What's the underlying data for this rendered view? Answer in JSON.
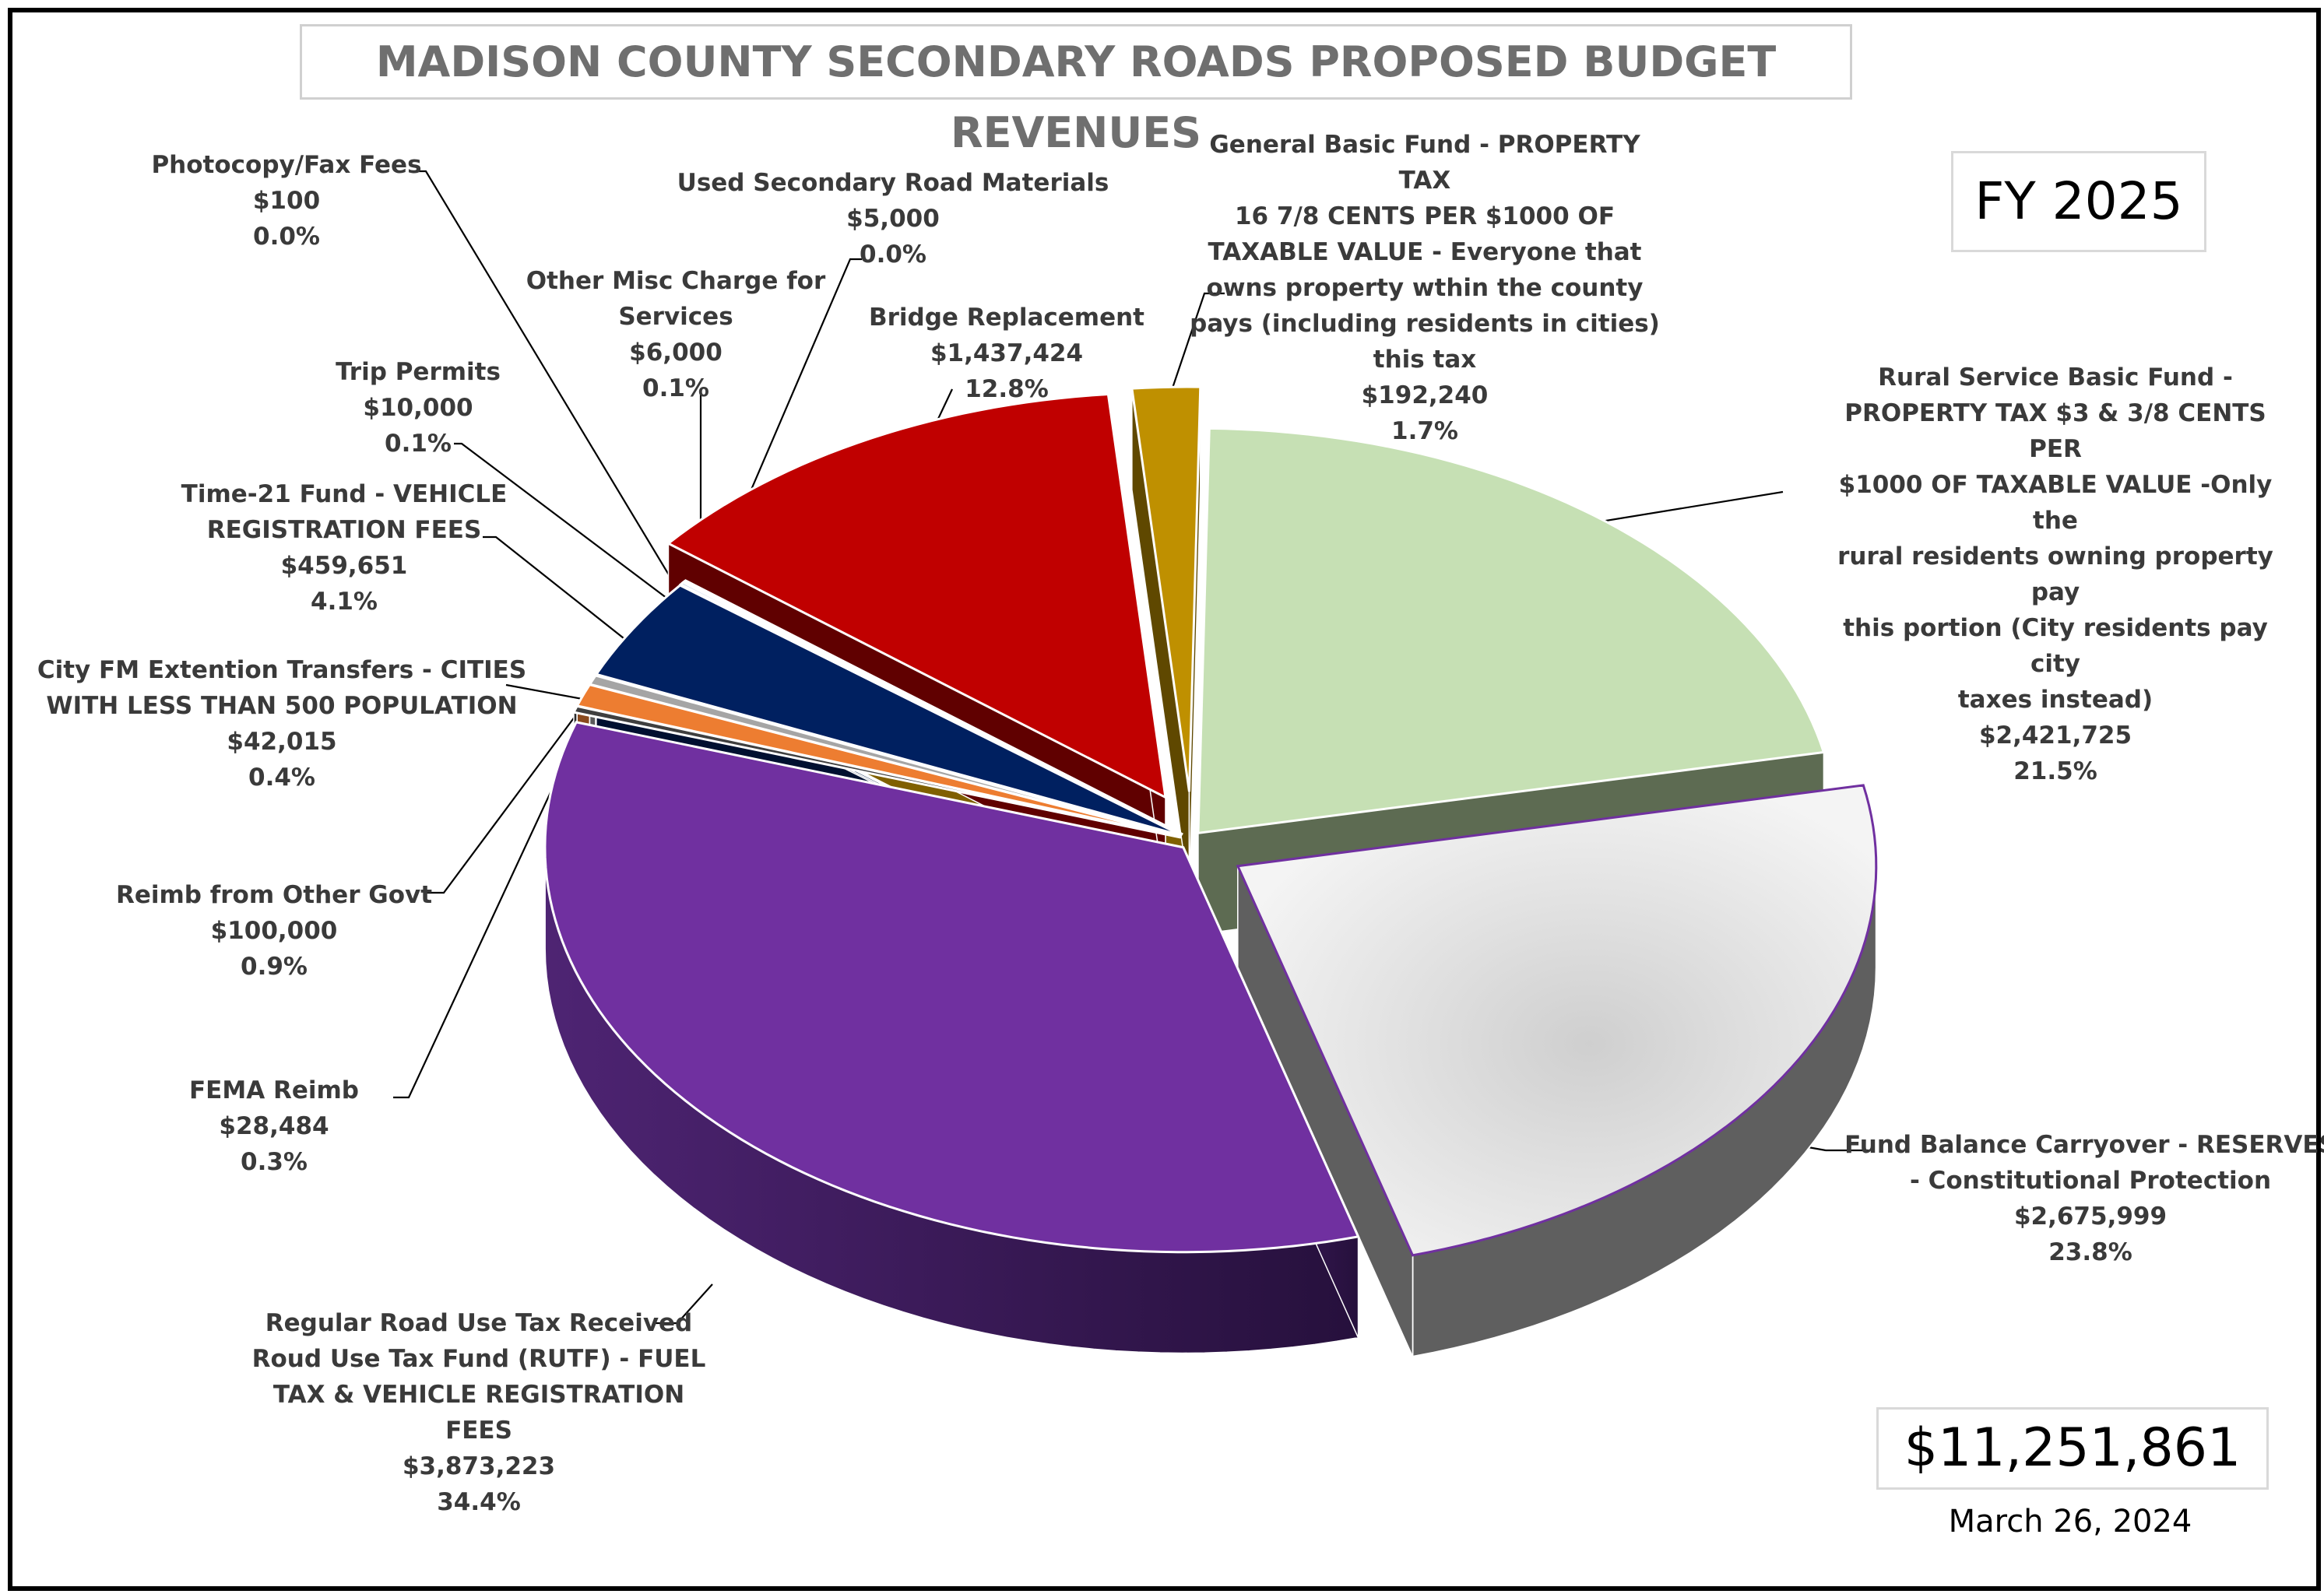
{
  "title": "MADISON COUNTY SECONDARY ROADS PROPOSED BUDGET REVENUES",
  "fiscal_year": "FY 2025",
  "total": "$11,251,861",
  "date": "March 26, 2024",
  "chart_data": {
    "type": "pie",
    "title": "MADISON COUNTY SECONDARY ROADS PROPOSED BUDGET REVENUES",
    "total_value": 11251861,
    "slices": [
      {
        "key": "rural",
        "lines": [
          "Rural Service Basic Fund -",
          "PROPERTY TAX $3 & 3/8 CENTS PER",
          "$1000 OF TAXABLE VALUE -Only the",
          "rural residents owning property pay",
          "this portion (City residents pay city",
          "taxes instead)"
        ],
        "value": 2421725,
        "value_label": "$2,421,725",
        "percent": "21.5%",
        "color": "#c6e0b4",
        "side_color": "#5d6b52",
        "exploded": false
      },
      {
        "key": "fund-balance",
        "lines": [
          "Fund Balance Carryover - RESERVES",
          "- Constitutional Protection"
        ],
        "value": 2675999,
        "value_label": "$2,675,999",
        "percent": "23.8%",
        "color": "#e3e3e3",
        "side_color": "#5f5f5f",
        "exploded": true
      },
      {
        "key": "rutf",
        "lines": [
          "Regular Road Use Tax Received",
          "Roud Use Tax Fund (RUTF) - FUEL",
          "TAX & VEHICLE REGISTRATION FEES"
        ],
        "value": 3873223,
        "value_label": "$3,873,223",
        "percent": "34.4%",
        "color": "#7030a0",
        "side_color": "#3d1a59",
        "exploded": false
      },
      {
        "key": "fema",
        "lines": [
          "FEMA Reimb"
        ],
        "value": 28484,
        "value_label": "$28,484",
        "percent": "0.3%",
        "color": "#3f3f3f",
        "side_color": "#2a2a2a",
        "exploded": false
      },
      {
        "key": "reimb-govt",
        "lines": [
          "Reimb from Other Govt"
        ],
        "value": 100000,
        "value_label": "$100,000",
        "percent": "0.9%",
        "color": "#ed7d31",
        "side_color": "#8a4a1e",
        "exploded": false
      },
      {
        "key": "city-fm",
        "lines": [
          "City FM Extention Transfers - CITIES",
          "WITH LESS THAN 500 POPULATION"
        ],
        "value": 42015,
        "value_label": "$42,015",
        "percent": "0.4%",
        "color": "#a5a5a5",
        "side_color": "#5a5a5a",
        "exploded": false
      },
      {
        "key": "time21",
        "lines": [
          "Time-21 Fund - VEHICLE",
          "REGISTRATION FEES"
        ],
        "value": 459651,
        "value_label": "$459,651",
        "percent": "4.1%",
        "color": "#002060",
        "side_color": "#001030",
        "exploded": false
      },
      {
        "key": "trip-permits",
        "lines": [
          "Trip Permits"
        ],
        "value": 10000,
        "value_label": "$10,000",
        "percent": "0.1%",
        "color": "#4472c4",
        "side_color": "#22395f",
        "exploded": false
      },
      {
        "key": "photocopy",
        "lines": [
          "Photocopy/Fax Fees"
        ],
        "value": 100,
        "value_label": "$100",
        "percent": "0.0%",
        "color": "#264478",
        "side_color": "#13223c",
        "exploded": false
      },
      {
        "key": "other-misc",
        "lines": [
          "Other Misc Charge for",
          "Services"
        ],
        "value": 6000,
        "value_label": "$6,000",
        "percent": "0.1%",
        "color": "#70ad47",
        "side_color": "#385723",
        "exploded": false
      },
      {
        "key": "used-materials",
        "lines": [
          "Used Secondary Road Materials"
        ],
        "value": 5000,
        "value_label": "$5,000",
        "percent": "0.0%",
        "color": "#ffc000",
        "side_color": "#806000",
        "exploded": false
      },
      {
        "key": "bridge",
        "lines": [
          "Bridge Replacement"
        ],
        "value": 1437424,
        "value_label": "$1,437,424",
        "percent": "12.8%",
        "color": "#c00000",
        "side_color": "#600000",
        "exploded": true
      },
      {
        "key": "general-basic",
        "lines": [
          "General Basic Fund - PROPERTY TAX",
          "16 7/8 CENTS PER $1000 OF",
          "TAXABLE VALUE - Everyone that",
          "owns property wthin the county",
          "pays (including residents in cities)",
          "this tax"
        ],
        "value": 192240,
        "value_label": "$192,240",
        "percent": "1.7%",
        "color": "#bf9000",
        "side_color": "#5f4800",
        "exploded": true
      }
    ]
  }
}
